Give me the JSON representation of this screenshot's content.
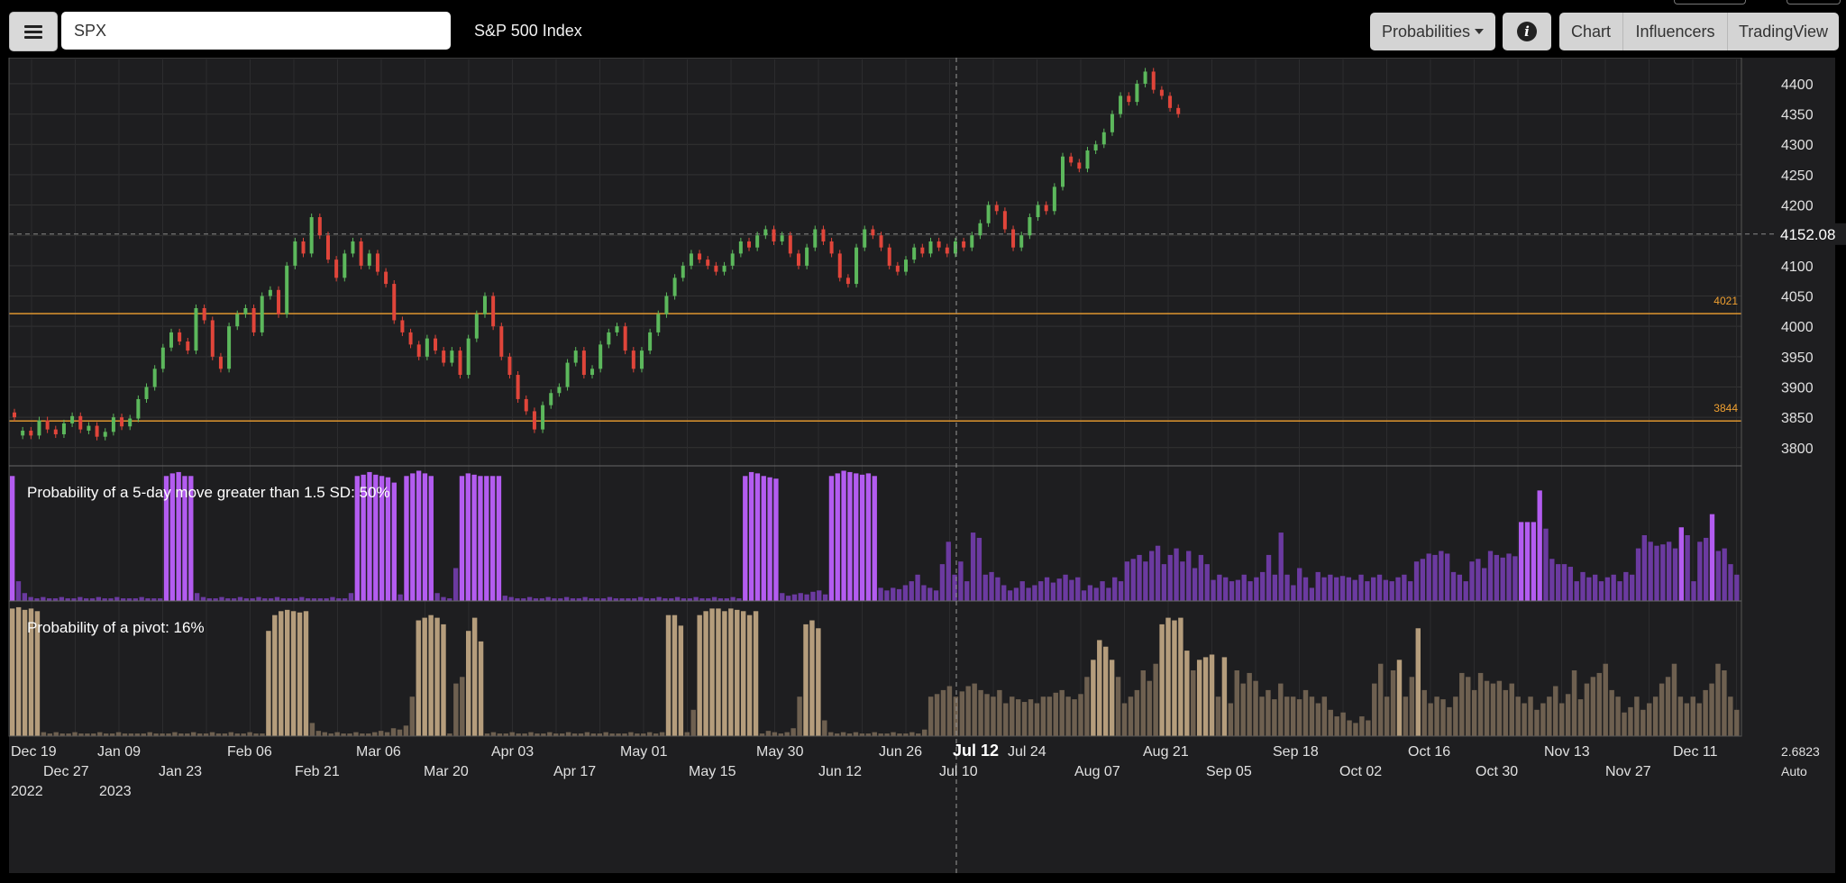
{
  "header": {
    "menu_icon": "hamburger-menu-icon",
    "search_value": "SPX",
    "title": "S&P 500 Index",
    "probabilities_label": "Probabilities",
    "info_icon": "info-icon",
    "tabs": [
      "Chart",
      "Influencers",
      "TradingView"
    ]
  },
  "colors": {
    "up": "#5cb85c",
    "down": "#e0453a",
    "level": "#f0a030",
    "prob_high": "#b35cf0",
    "prob_low": "#6b3aa0",
    "pivot_high": "#b59d7c",
    "pivot_low": "#6e6050",
    "background": "#1e1e20"
  },
  "chart_data": {
    "type": "candlestick",
    "price_axis": {
      "ticks": [
        "4400",
        "4350",
        "4300",
        "4250",
        "4200",
        "4150",
        "4100",
        "4050",
        "4000",
        "3950",
        "3900",
        "3850",
        "3800"
      ],
      "last_price": "4152.08",
      "ylim": [
        3770,
        4440
      ]
    },
    "levels": [
      {
        "label": "4021",
        "value": 4021
      },
      {
        "label": "3844",
        "value": 3844
      }
    ],
    "x_axis": {
      "row1": [
        "Dec 19",
        "Jan 09",
        "Feb 06",
        "Mar 06",
        "Apr 03",
        "May 01",
        "May 30",
        "Jun 26",
        "Jul 12",
        "Jul 24",
        "Aug 21",
        "Sep 18",
        "Oct 16",
        "Nov 13",
        "Dec 11"
      ],
      "row2": [
        "Dec 27",
        "Jan 23",
        "Feb 21",
        "Mar 20",
        "Apr 17",
        "May 15",
        "Jun 12",
        "Jul 10",
        "Aug 07",
        "Sep 05",
        "Oct 02",
        "Oct 30",
        "Nov 27"
      ],
      "row3": [
        "2022",
        "2023"
      ],
      "crosshair_label": "Jul 12",
      "right_value": "2.6823",
      "right_mode": "Auto"
    },
    "candles_close": [
      3850,
      3828,
      3820,
      3845,
      3830,
      3822,
      3840,
      3852,
      3830,
      3836,
      3818,
      3826,
      3850,
      3835,
      3848,
      3880,
      3900,
      3930,
      3965,
      3990,
      3975,
      3960,
      4030,
      4010,
      3950,
      3930,
      4000,
      4020,
      4030,
      3990,
      4050,
      4060,
      4020,
      4100,
      4140,
      4120,
      4180,
      4150,
      4110,
      4080,
      4120,
      4140,
      4100,
      4120,
      4090,
      4070,
      4010,
      3990,
      3970,
      3950,
      3980,
      3960,
      3940,
      3960,
      3920,
      3980,
      4020,
      4050,
      4000,
      3950,
      3920,
      3880,
      3860,
      3830,
      3870,
      3890,
      3900,
      3940,
      3960,
      3920,
      3930,
      3970,
      3990,
      4000,
      3960,
      3930,
      3960,
      3990,
      4020,
      4050,
      4080,
      4100,
      4120,
      4110,
      4100,
      4090,
      4100,
      4120,
      4140,
      4130,
      4150,
      4160,
      4140,
      4150,
      4120,
      4100,
      4130,
      4160,
      4140,
      4120,
      4080,
      4070,
      4130,
      4160,
      4150,
      4130,
      4100,
      4090,
      4110,
      4130,
      4120,
      4140,
      4130,
      4120,
      4140,
      4130,
      4150,
      4170,
      4200,
      4190,
      4160,
      4130,
      4150,
      4180,
      4200,
      4190,
      4230,
      4280,
      4270,
      4260,
      4290,
      4300,
      4320,
      4350,
      4380,
      4370,
      4400,
      4420,
      4390,
      4380,
      4360,
      4350
    ],
    "candles_up": [
      false,
      true,
      false,
      true,
      false,
      false,
      true,
      true,
      false,
      true,
      false,
      true,
      true,
      false,
      true,
      true,
      true,
      true,
      true,
      true,
      false,
      false,
      true,
      false,
      false,
      false,
      true,
      true,
      true,
      false,
      true,
      true,
      false,
      true,
      true,
      false,
      true,
      false,
      false,
      false,
      true,
      true,
      false,
      true,
      false,
      false,
      false,
      false,
      false,
      false,
      true,
      false,
      false,
      true,
      false,
      true,
      true,
      true,
      false,
      false,
      false,
      false,
      false,
      false,
      true,
      true,
      true,
      true,
      true,
      false,
      true,
      true,
      true,
      true,
      false,
      false,
      true,
      true,
      true,
      true,
      true,
      true,
      true,
      false,
      false,
      false,
      true,
      true,
      true,
      false,
      true,
      true,
      false,
      true,
      false,
      false,
      true,
      true,
      false,
      false,
      false,
      false,
      true,
      true,
      false,
      false,
      false,
      false,
      true,
      true,
      false,
      true,
      false,
      false,
      true,
      false,
      true,
      true,
      true,
      false,
      false,
      false,
      true,
      true,
      true,
      false,
      true,
      true,
      false,
      false,
      true,
      true,
      true,
      true,
      true,
      false,
      true,
      true,
      false,
      false,
      false,
      false
    ],
    "panel_5day": {
      "label": "Probability of a 5-day move greater than 1.5 SD: 50%",
      "values": [
        0.95,
        0.15,
        0.06,
        0.03,
        0.02,
        0.03,
        0.02,
        0.02,
        0.03,
        0.02,
        0.02,
        0.03,
        0.02,
        0.02,
        0.03,
        0.02,
        0.02,
        0.03,
        0.02,
        0.02,
        0.02,
        0.03,
        0.02,
        0.02,
        0.02,
        0.95,
        0.97,
        0.98,
        0.95,
        0.95,
        0.06,
        0.03,
        0.02,
        0.02,
        0.03,
        0.02,
        0.02,
        0.03,
        0.02,
        0.02,
        0.03,
        0.02,
        0.02,
        0.03,
        0.02,
        0.02,
        0.02,
        0.03,
        0.02,
        0.02,
        0.02,
        0.02,
        0.03,
        0.02,
        0.02,
        0.06,
        0.95,
        0.96,
        0.98,
        0.96,
        0.95,
        0.94,
        0.9,
        0.05,
        0.95,
        0.97,
        0.99,
        0.97,
        0.95,
        0.06,
        0.03,
        0.02,
        0.25,
        0.95,
        0.97,
        0.96,
        0.95,
        0.95,
        0.95,
        0.95,
        0.04,
        0.03,
        0.02,
        0.02,
        0.03,
        0.02,
        0.02,
        0.03,
        0.02,
        0.02,
        0.03,
        0.02,
        0.02,
        0.03,
        0.02,
        0.02,
        0.02,
        0.03,
        0.02,
        0.02,
        0.02,
        0.02,
        0.03,
        0.02,
        0.02,
        0.03,
        0.02,
        0.02,
        0.03,
        0.02,
        0.02,
        0.03,
        0.02,
        0.02,
        0.03,
        0.02,
        0.02,
        0.03,
        0.02,
        0.95,
        0.98,
        0.97,
        0.95,
        0.94,
        0.93,
        0.06,
        0.04,
        0.05,
        0.06,
        0.05,
        0.07,
        0.08,
        0.05,
        0.95,
        0.97,
        0.99,
        0.98,
        0.97,
        0.96,
        0.97,
        0.95,
        0.1,
        0.08,
        0.1,
        0.09,
        0.12,
        0.15,
        0.2,
        0.12,
        0.1,
        0.08,
        0.28,
        0.45,
        0.2,
        0.3,
        0.15,
        0.52,
        0.48,
        0.2,
        0.22,
        0.18,
        0.12,
        0.08,
        0.1,
        0.15,
        0.1,
        0.12,
        0.15,
        0.18,
        0.14,
        0.17,
        0.2,
        0.16,
        0.18,
        0.08,
        0.12,
        0.1,
        0.15,
        0.1,
        0.18,
        0.15,
        0.3,
        0.32,
        0.35,
        0.3,
        0.38,
        0.42,
        0.28,
        0.35,
        0.4,
        0.3,
        0.38,
        0.25,
        0.35,
        0.28,
        0.16,
        0.2,
        0.18,
        0.15,
        0.16,
        0.2,
        0.15,
        0.18,
        0.22,
        0.35,
        0.2,
        0.52,
        0.2,
        0.12,
        0.25,
        0.18,
        0.1,
        0.22,
        0.18,
        0.2,
        0.18,
        0.19,
        0.18,
        0.16,
        0.2,
        0.15,
        0.18,
        0.2,
        0.16,
        0.15,
        0.18,
        0.2,
        0.15,
        0.3,
        0.32,
        0.36,
        0.35,
        0.38,
        0.36,
        0.22,
        0.2,
        0.15,
        0.3,
        0.32,
        0.25,
        0.38,
        0.35,
        0.33,
        0.36,
        0.34,
        0.6,
        0.6,
        0.6,
        0.84,
        0.55,
        0.32,
        0.28,
        0.28,
        0.26,
        0.15,
        0.22,
        0.18,
        0.2,
        0.15,
        0.18,
        0.2,
        0.15,
        0.22,
        0.2,
        0.4,
        0.5,
        0.45,
        0.42,
        0.43,
        0.45,
        0.4,
        0.56,
        0.5,
        0.15,
        0.45,
        0.48,
        0.66,
        0.38,
        0.4,
        0.28,
        0.2
      ]
    },
    "panel_pivot": {
      "label": "Probability of a pivot: 16%",
      "values": [
        0.97,
        0.98,
        0.96,
        0.97,
        0.95,
        0.03,
        0.02,
        0.03,
        0.02,
        0.02,
        0.03,
        0.02,
        0.02,
        0.02,
        0.03,
        0.02,
        0.02,
        0.03,
        0.02,
        0.02,
        0.02,
        0.02,
        0.03,
        0.02,
        0.02,
        0.02,
        0.03,
        0.02,
        0.02,
        0.03,
        0.02,
        0.02,
        0.03,
        0.02,
        0.02,
        0.03,
        0.02,
        0.02,
        0.03,
        0.02,
        0.02,
        0.8,
        0.92,
        0.95,
        0.96,
        0.95,
        0.94,
        0.95,
        0.1,
        0.04,
        0.03,
        0.02,
        0.03,
        0.02,
        0.02,
        0.03,
        0.02,
        0.02,
        0.03,
        0.04,
        0.03,
        0.06,
        0.05,
        0.08,
        0.3,
        0.88,
        0.9,
        0.92,
        0.9,
        0.85,
        0.02,
        0.4,
        0.45,
        0.8,
        0.9,
        0.72,
        0.02,
        0.03,
        0.02,
        0.02,
        0.03,
        0.02,
        0.02,
        0.03,
        0.02,
        0.02,
        0.03,
        0.02,
        0.02,
        0.03,
        0.02,
        0.02,
        0.03,
        0.02,
        0.02,
        0.03,
        0.02,
        0.02,
        0.02,
        0.03,
        0.02,
        0.02,
        0.03,
        0.02,
        0.03,
        0.92,
        0.92,
        0.84,
        0.03,
        0.2,
        0.92,
        0.95,
        0.97,
        0.97,
        0.95,
        0.97,
        0.96,
        0.95,
        0.92,
        0.95,
        0.02,
        0.04,
        0.03,
        0.02,
        0.03,
        0.06,
        0.3,
        0.85,
        0.88,
        0.82,
        0.12,
        0.03,
        0.02,
        0.03,
        0.02,
        0.03,
        0.02,
        0.02,
        0.03,
        0.02,
        0.02,
        0.03,
        0.02,
        0.02,
        0.03,
        0.02,
        0.05,
        0.3,
        0.32,
        0.35,
        0.38,
        0.3,
        0.34,
        0.38,
        0.4,
        0.35,
        0.32,
        0.3,
        0.35,
        0.25,
        0.3,
        0.28,
        0.26,
        0.28,
        0.25,
        0.3,
        0.3,
        0.33,
        0.35,
        0.3,
        0.28,
        0.32,
        0.45,
        0.58,
        0.73,
        0.68,
        0.58,
        0.45,
        0.25,
        0.3,
        0.35,
        0.5,
        0.42,
        0.55,
        0.85,
        0.9,
        0.88,
        0.9,
        0.65,
        0.5,
        0.58,
        0.6,
        0.62,
        0.3,
        0.6,
        0.25,
        0.5,
        0.4,
        0.48,
        0.42,
        0.3,
        0.35,
        0.28,
        0.4,
        0.3,
        0.3,
        0.28,
        0.35,
        0.3,
        0.25,
        0.3,
        0.2,
        0.15,
        0.18,
        0.12,
        0.1,
        0.15,
        0.12,
        0.4,
        0.55,
        0.3,
        0.5,
        0.58,
        0.3,
        0.45,
        0.82,
        0.35,
        0.25,
        0.3,
        0.28,
        0.22,
        0.3,
        0.48,
        0.45,
        0.35,
        0.48,
        0.42,
        0.4,
        0.42,
        0.35,
        0.4,
        0.3,
        0.25,
        0.3,
        0.2,
        0.25,
        0.3,
        0.38,
        0.25,
        0.32,
        0.5,
        0.28,
        0.4,
        0.45,
        0.48,
        0.55,
        0.35,
        0.3,
        0.18,
        0.22,
        0.3,
        0.2,
        0.25,
        0.3,
        0.4,
        0.45,
        0.55,
        0.3,
        0.25,
        0.3,
        0.25,
        0.35,
        0.4,
        0.55,
        0.5,
        0.3,
        0.2
      ]
    },
    "grid": true
  }
}
